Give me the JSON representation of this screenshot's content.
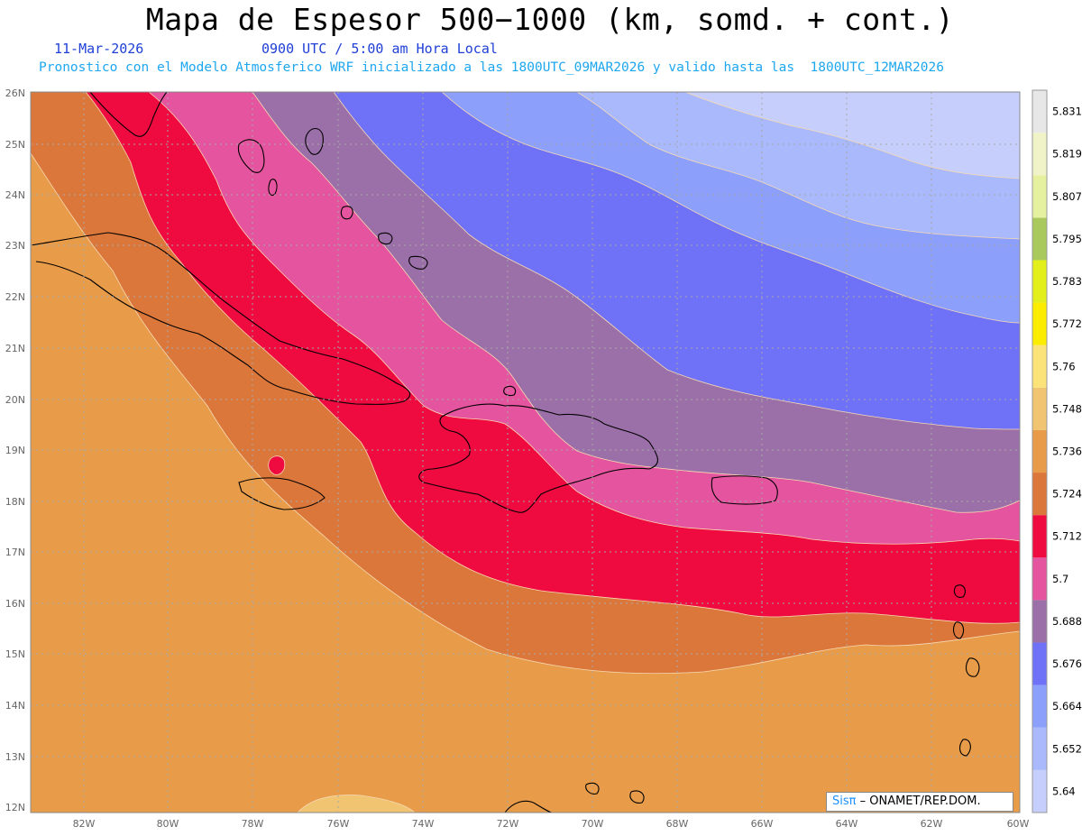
{
  "header": {
    "title": "Mapa de Espesor 500−1000 (km, somd. + cont.)",
    "date": "11-Mar-2026",
    "time": "0900 UTC / 5:00 am Hora Local",
    "forecast": "Pronostico con el Modelo Atmosferico WRF inicializado a las 1800UTC_09MAR2026 y valido hasta las  1800UTC_12MAR2026"
  },
  "axes": {
    "lat_labels": [
      "26N",
      "25N",
      "24N",
      "23N",
      "22N",
      "21N",
      "20N",
      "19N",
      "18N",
      "17N",
      "16N",
      "15N",
      "14N",
      "13N",
      "12N"
    ],
    "lon_labels": [
      "82W",
      "80W",
      "78W",
      "76W",
      "74W",
      "72W",
      "70W",
      "68W",
      "66W",
      "64W",
      "62W",
      "60W"
    ]
  },
  "colorbar": {
    "colors": [
      "#c6cffc",
      "#a9b9fc",
      "#8c9ffb",
      "#6f72f7",
      "#9b6fa8",
      "#e5549f",
      "#ef0a40",
      "#db773b",
      "#e89c4a",
      "#f0c471",
      "#fbe37a",
      "#fbec00",
      "#e2ef1a",
      "#a9c95c",
      "#e6f1a0",
      "#f0f3c7",
      "#e7e7e7"
    ],
    "levels": [
      "5.64",
      "5.652",
      "5.664",
      "5.676",
      "5.688",
      "5.7",
      "5.712",
      "5.724",
      "5.736",
      "5.748",
      "5.76",
      "5.772",
      "5.783",
      "5.795",
      "5.807",
      "5.819",
      "5.831"
    ]
  },
  "credit": {
    "sis": "Sisπ",
    "org": "– ONAMET/REP.DOM."
  }
}
